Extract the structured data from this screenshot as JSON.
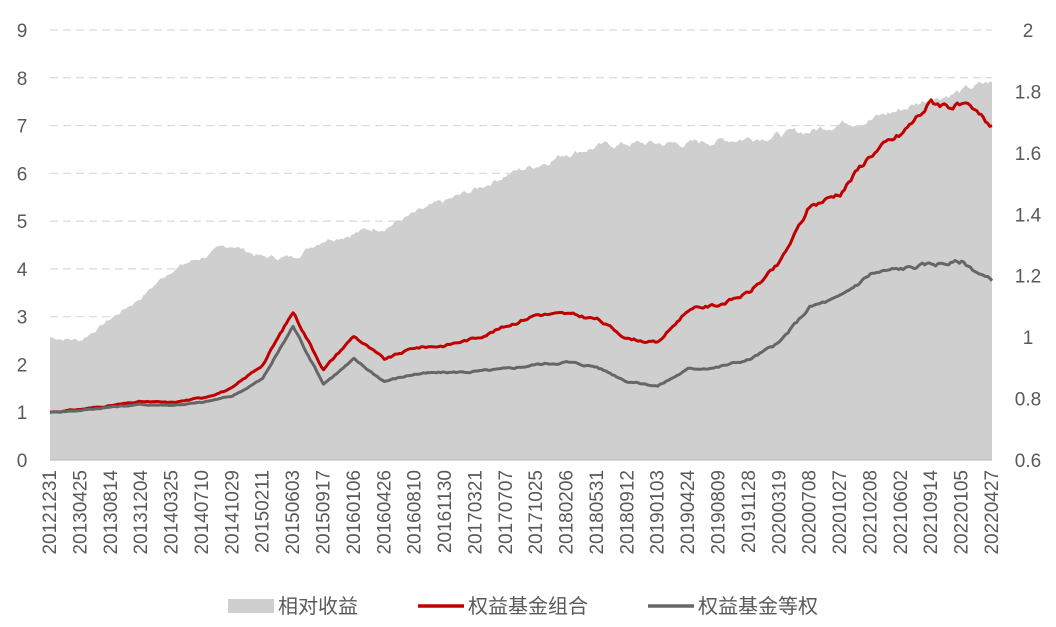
{
  "chart_data": {
    "type": "line",
    "title": "",
    "xlabel": "",
    "ylabel": "",
    "y2label": "",
    "ylim": [
      0,
      9
    ],
    "y2lim": [
      0.6,
      2.0
    ],
    "y_ticks": [
      "0",
      "1",
      "2",
      "3",
      "4",
      "5",
      "6",
      "7",
      "8",
      "9"
    ],
    "y2_ticks": [
      "0.6",
      "0.8",
      "1",
      "1.2",
      "1.4",
      "1.6",
      "1.8",
      "2"
    ],
    "grid": "horizontal dashed",
    "legend_position": "bottom",
    "x_tick_labels": [
      "20121231",
      "20130425",
      "20130814",
      "20131204",
      "20140325",
      "20140710",
      "20141029",
      "20150211",
      "20150603",
      "20150917",
      "20160106",
      "20160426",
      "20160810",
      "20161130",
      "20170321",
      "20170707",
      "20171025",
      "20180206",
      "20180531",
      "20180912",
      "20190103",
      "20190424",
      "20190809",
      "20191128",
      "20200319",
      "20200708",
      "20201027",
      "20210208",
      "20210602",
      "20210914",
      "20220105",
      "20220427"
    ],
    "series": [
      {
        "name": "相对收益",
        "type": "area",
        "axis": "right",
        "color": "#d0cfcf",
        "values": [
          1.0,
          0.99,
          1.06,
          1.13,
          1.22,
          1.26,
          1.3,
          1.26,
          1.26,
          1.32,
          1.34,
          1.36,
          1.4,
          1.44,
          1.48,
          1.53,
          1.56,
          1.6,
          1.62,
          1.63,
          1.63,
          1.63,
          1.64,
          1.65,
          1.66,
          1.67,
          1.7,
          1.71,
          1.74,
          1.78,
          1.8,
          1.83
        ]
      },
      {
        "name": "权益基金组合",
        "type": "line",
        "axis": "left",
        "color": "#c00000",
        "values": [
          1.0,
          1.06,
          1.14,
          1.22,
          1.2,
          1.3,
          1.5,
          2.0,
          3.1,
          1.9,
          2.6,
          2.1,
          2.35,
          2.4,
          2.55,
          2.8,
          3.05,
          3.05,
          2.95,
          2.55,
          2.45,
          3.15,
          3.25,
          3.5,
          4.1,
          5.3,
          5.6,
          6.4,
          6.8,
          7.5,
          7.4,
          7.0
        ]
      },
      {
        "name": "权益基金等权",
        "type": "line",
        "axis": "left",
        "color": "#666666",
        "values": [
          1.0,
          1.04,
          1.11,
          1.16,
          1.15,
          1.2,
          1.34,
          1.7,
          2.8,
          1.6,
          2.1,
          1.65,
          1.8,
          1.83,
          1.85,
          1.9,
          2.0,
          2.05,
          1.95,
          1.65,
          1.55,
          1.9,
          1.95,
          2.1,
          2.45,
          3.2,
          3.4,
          3.9,
          4.0,
          4.1,
          4.15,
          3.75
        ]
      }
    ]
  }
}
